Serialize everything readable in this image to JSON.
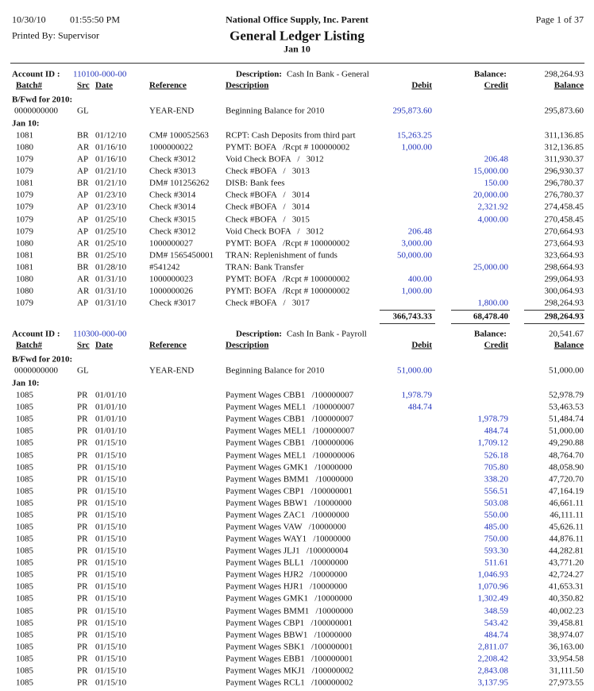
{
  "header": {
    "date": "10/30/10",
    "time": "01:55:50 PM",
    "printed_by": "Printed By: Supervisor",
    "company": "National Office Supply, Inc. Parent",
    "title": "General Ledger Listing",
    "period": "Jan 10",
    "page": "Page 1 of 37"
  },
  "columns": [
    "Batch#",
    "Src",
    "Date",
    "Reference",
    "Description",
    "Debit",
    "Credit",
    "Balance"
  ],
  "accounts": [
    {
      "id_label": "Account ID :",
      "id": "110100-000-00",
      "desc_label": "Description:",
      "description": "Cash In Bank - General",
      "balance_label": "Balance:",
      "balance": "298,264.93",
      "bfwd_label": "B/Fwd for 2010:",
      "bfwd_rows": [
        [
          "0000000000",
          "GL",
          null,
          "YEAR-END",
          "Beginning Balance for 2010",
          "295,873.60",
          null,
          "295,873.60"
        ]
      ],
      "period_label": "Jan 10:",
      "rows": [
        [
          "1081",
          "BR",
          "01/12/10",
          "CM# 100052563",
          "RCPT: Cash Deposits from third part",
          "15,263.25",
          null,
          "311,136.85"
        ],
        [
          "1080",
          "AR",
          "01/16/10",
          "1000000022",
          "PYMT: BOFA   /Rcpt # 100000002",
          "1,000.00",
          null,
          "312,136.85"
        ],
        [
          "1079",
          "AP",
          "01/16/10",
          "Check #3012",
          "Void Check BOFA   /   3012",
          null,
          "206.48",
          "311,930.37"
        ],
        [
          "1079",
          "AP",
          "01/21/10",
          "Check #3013",
          "Check #BOFA   /   3013",
          null,
          "15,000.00",
          "296,930.37"
        ],
        [
          "1081",
          "BR",
          "01/21/10",
          "DM# 101256262",
          "DISB: Bank fees",
          null,
          "150.00",
          "296,780.37"
        ],
        [
          "1079",
          "AP",
          "01/23/10",
          "Check #3014",
          "Check #BOFA   /   3014",
          null,
          "20,000.00",
          "276,780.37"
        ],
        [
          "1079",
          "AP",
          "01/23/10",
          "Check #3014",
          "Check #BOFA   /   3014",
          null,
          "2,321.92",
          "274,458.45"
        ],
        [
          "1079",
          "AP",
          "01/25/10",
          "Check #3015",
          "Check #BOFA   /   3015",
          null,
          "4,000.00",
          "270,458.45"
        ],
        [
          "1079",
          "AP",
          "01/25/10",
          "Check #3012",
          "Void Check BOFA   /   3012",
          "206.48",
          null,
          "270,664.93"
        ],
        [
          "1080",
          "AR",
          "01/25/10",
          "1000000027",
          "PYMT: BOFA   /Rcpt # 100000002",
          "3,000.00",
          null,
          "273,664.93"
        ],
        [
          "1081",
          "BR",
          "01/25/10",
          "DM# 1565450001",
          "TRAN: Replenishment of funds",
          "50,000.00",
          null,
          "323,664.93"
        ],
        [
          "1081",
          "BR",
          "01/28/10",
          "#541242",
          "TRAN: Bank Transfer",
          null,
          "25,000.00",
          "298,664.93"
        ],
        [
          "1080",
          "AR",
          "01/31/10",
          "1000000023",
          "PYMT: BOFA   /Rcpt # 100000002",
          "400.00",
          null,
          "299,064.93"
        ],
        [
          "1080",
          "AR",
          "01/31/10",
          "1000000026",
          "PYMT: BOFA   /Rcpt # 100000002",
          "1,000.00",
          null,
          "300,064.93"
        ],
        [
          "1079",
          "AP",
          "01/31/10",
          "Check #3017",
          "Check #BOFA   /   3017",
          null,
          "1,800.00",
          "298,264.93"
        ]
      ],
      "totals": [
        "366,743.33",
        "68,478.40",
        "298,264.93"
      ]
    },
    {
      "id_label": "Account ID :",
      "id": "110300-000-00",
      "desc_label": "Description:",
      "description": "Cash In Bank - Payroll",
      "balance_label": "Balance:",
      "balance": "20,541.67",
      "bfwd_label": "B/Fwd for 2010:",
      "bfwd_rows": [
        [
          "0000000000",
          "GL",
          null,
          "YEAR-END",
          "Beginning Balance for 2010",
          "51,000.00",
          null,
          "51,000.00"
        ]
      ],
      "period_label": "Jan 10:",
      "rows": [
        [
          "1085",
          "PR",
          "01/01/10",
          null,
          "Payment Wages CBB1   /100000007",
          "1,978.79",
          null,
          "52,978.79"
        ],
        [
          "1085",
          "PR",
          "01/01/10",
          null,
          "Payment Wages MEL1   /100000007",
          "484.74",
          null,
          "53,463.53"
        ],
        [
          "1085",
          "PR",
          "01/01/10",
          null,
          "Payment Wages CBB1   /100000007",
          null,
          "1,978.79",
          "51,484.74"
        ],
        [
          "1085",
          "PR",
          "01/01/10",
          null,
          "Payment Wages MEL1   /100000007",
          null,
          "484.74",
          "51,000.00"
        ],
        [
          "1085",
          "PR",
          "01/15/10",
          null,
          "Payment Wages CBB1   /100000006",
          null,
          "1,709.12",
          "49,290.88"
        ],
        [
          "1085",
          "PR",
          "01/15/10",
          null,
          "Payment Wages MEL1   /100000006",
          null,
          "526.18",
          "48,764.70"
        ],
        [
          "1085",
          "PR",
          "01/15/10",
          null,
          "Payment Wages GMK1   /10000000",
          null,
          "705.80",
          "48,058.90"
        ],
        [
          "1085",
          "PR",
          "01/15/10",
          null,
          "Payment Wages BMM1   /10000000",
          null,
          "338.20",
          "47,720.70"
        ],
        [
          "1085",
          "PR",
          "01/15/10",
          null,
          "Payment Wages CBP1   /100000001",
          null,
          "556.51",
          "47,164.19"
        ],
        [
          "1085",
          "PR",
          "01/15/10",
          null,
          "Payment Wages BBW1   /10000000",
          null,
          "503.08",
          "46,661.11"
        ],
        [
          "1085",
          "PR",
          "01/15/10",
          null,
          "Payment Wages ZAC1   /10000000",
          null,
          "550.00",
          "46,111.11"
        ],
        [
          "1085",
          "PR",
          "01/15/10",
          null,
          "Payment Wages VAW   /10000000",
          null,
          "485.00",
          "45,626.11"
        ],
        [
          "1085",
          "PR",
          "01/15/10",
          null,
          "Payment Wages WAY1   /10000000",
          null,
          "750.00",
          "44,876.11"
        ],
        [
          "1085",
          "PR",
          "01/15/10",
          null,
          "Payment Wages JLJ1   /100000004",
          null,
          "593.30",
          "44,282.81"
        ],
        [
          "1085",
          "PR",
          "01/15/10",
          null,
          "Payment Wages BLL1   /10000000",
          null,
          "511.61",
          "43,771.20"
        ],
        [
          "1085",
          "PR",
          "01/15/10",
          null,
          "Payment Wages HJR2   /10000000",
          null,
          "1,046.93",
          "42,724.27"
        ],
        [
          "1085",
          "PR",
          "01/15/10",
          null,
          "Payment Wages HJR1   /10000000",
          null,
          "1,070.96",
          "41,653.31"
        ],
        [
          "1085",
          "PR",
          "01/15/10",
          null,
          "Payment Wages GMK1   /10000000",
          null,
          "1,302.49",
          "40,350.82"
        ],
        [
          "1085",
          "PR",
          "01/15/10",
          null,
          "Payment Wages BMM1   /10000000",
          null,
          "348.59",
          "40,002.23"
        ],
        [
          "1085",
          "PR",
          "01/15/10",
          null,
          "Payment Wages CBP1   /100000001",
          null,
          "543.42",
          "39,458.81"
        ],
        [
          "1085",
          "PR",
          "01/15/10",
          null,
          "Payment Wages BBW1   /10000000",
          null,
          "484.74",
          "38,974.07"
        ],
        [
          "1085",
          "PR",
          "01/15/10",
          null,
          "Payment Wages SBK1   /100000001",
          null,
          "2,811.07",
          "36,163.00"
        ],
        [
          "1085",
          "PR",
          "01/15/10",
          null,
          "Payment Wages EBB1   /100000001",
          null,
          "2,208.42",
          "33,954.58"
        ],
        [
          "1085",
          "PR",
          "01/15/10",
          null,
          "Payment Wages MKJ1   /100000002",
          null,
          "2,843.08",
          "31,111.50"
        ],
        [
          "1085",
          "PR",
          "01/15/10",
          null,
          "Payment Wages RCL1   /100000002",
          null,
          "3,137.95",
          "27,973.55"
        ]
      ]
    }
  ]
}
